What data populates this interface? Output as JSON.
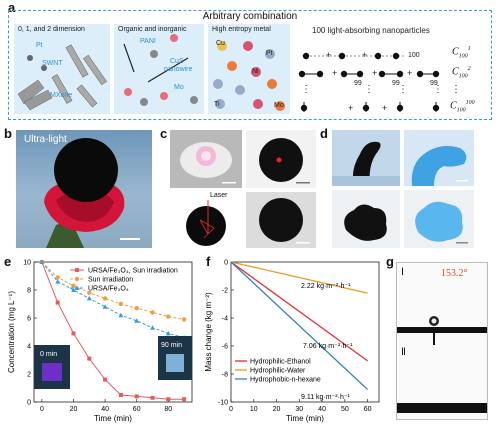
{
  "panel_a": {
    "letter": "a",
    "title": "Arbitrary combination",
    "col1": {
      "heading": "0, 1, and 2 dimension",
      "labels": [
        "Pt",
        "SWNT",
        "MXene"
      ]
    },
    "col2": {
      "heading": "Organic and inorganic",
      "labels": [
        "PANI",
        "CuS",
        "nanowire",
        "Mo"
      ]
    },
    "col3": {
      "heading": "High entropy metal",
      "labels": [
        "Cu",
        "Pt",
        "Ni",
        "Ti",
        "Mo"
      ]
    },
    "col4": {
      "heading": "100 light-absorbing nanoparticles",
      "label_100": "100",
      "label_99": "99",
      "formula": [
        "C",
        "C",
        "C"
      ],
      "sub": [
        "100",
        "100",
        "100"
      ],
      "sup": [
        "1",
        "2",
        "100"
      ],
      "plus": "+",
      "dots": "⋮"
    }
  },
  "panel_b": {
    "letter": "b",
    "caption": "Ultra-light"
  },
  "panel_c": {
    "letter": "c",
    "laser": "Laser"
  },
  "panel_d": {
    "letter": "d"
  },
  "panel_e": {
    "letter": "e",
    "legend": [
      "URSA/Fe₃O₄, Sun irradiation",
      "Sun irradiation",
      "URSA/Fe₃O₄"
    ],
    "inset_left": "0 min",
    "inset_right": "90 min",
    "colors": {
      "red": "#ea5a5a",
      "orange": "#f0a040",
      "blue": "#3c9ad6"
    }
  },
  "panel_f": {
    "letter": "f",
    "legend": [
      "Hydrophilic-Ethanol",
      "Hydrophilic-Water",
      "Hydrophobic-n-hexane"
    ],
    "rates": [
      "2.22 kg·m⁻²·h⁻¹",
      "7.06 kg·m⁻²·h⁻¹",
      "9.11 kg·m⁻²·h⁻¹"
    ],
    "colors": {
      "red": "#e03030",
      "orange": "#e89a20",
      "blue": "#2f7fd0"
    }
  },
  "panel_g": {
    "letter": "g",
    "roman1": "Ⅰ",
    "roman2": "Ⅱ",
    "angle": "153.2°"
  },
  "chart_data": [
    {
      "type": "line",
      "xlabel": "Time (min)",
      "ylabel": "Concentration (mg L⁻¹)",
      "xlim": [
        -5,
        95
      ],
      "ylim": [
        0,
        10
      ],
      "xticks": [
        0,
        20,
        40,
        60,
        80
      ],
      "yticks": [
        0,
        2,
        4,
        6,
        8,
        10
      ],
      "series": [
        {
          "name": "URSA/Fe₃O₄, Sun irradiation",
          "x": [
            0,
            10,
            20,
            30,
            40,
            50,
            60,
            70,
            80,
            90
          ],
          "y": [
            10,
            7.1,
            4.9,
            3.1,
            1.6,
            0.5,
            0.4,
            0.3,
            0.2,
            0.2
          ]
        },
        {
          "name": "Sun irradiation",
          "x": [
            0,
            10,
            20,
            30,
            40,
            50,
            60,
            70,
            80,
            90
          ],
          "y": [
            10,
            8.9,
            8.3,
            7.8,
            7.4,
            7.0,
            6.7,
            6.4,
            6.1,
            5.9
          ]
        },
        {
          "name": "URSA/Fe₃O₄",
          "x": [
            0,
            10,
            20,
            30,
            40,
            50,
            60,
            70,
            80,
            90
          ],
          "y": [
            10,
            8.6,
            8.0,
            7.4,
            6.8,
            6.2,
            5.8,
            5.3,
            4.9,
            4.6
          ]
        }
      ]
    },
    {
      "type": "line",
      "xlabel": "Time (min)",
      "ylabel": "Mass change (kg m⁻²)",
      "xlim": [
        0,
        65
      ],
      "ylim": [
        -10,
        0
      ],
      "xticks": [
        0,
        10,
        20,
        30,
        40,
        50,
        60
      ],
      "yticks": [
        0,
        -2,
        -4,
        -6,
        -8,
        -10
      ],
      "series": [
        {
          "name": "Hydrophilic-Ethanol",
          "x": [
            0,
            60
          ],
          "y": [
            0,
            -7.06
          ]
        },
        {
          "name": "Hydrophilic-Water",
          "x": [
            0,
            60
          ],
          "y": [
            0,
            -2.22
          ]
        },
        {
          "name": "Hydrophobic-n-hexane",
          "x": [
            0,
            60
          ],
          "y": [
            0,
            -9.11
          ]
        }
      ]
    }
  ]
}
